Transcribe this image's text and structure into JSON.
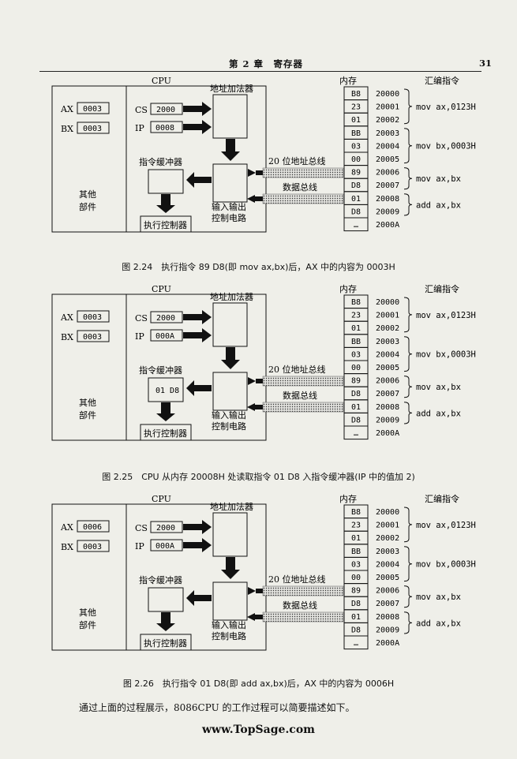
{
  "header": {
    "chapter": "第 2 章　寄存器",
    "page": "31"
  },
  "diagrams": [
    {
      "caption": "图 2.24　执行指令 89 D8(即 mov ax,bx)后，AX 中的内容为 0003H",
      "ax": "0003",
      "bx": "0003",
      "cs": "2000",
      "ip": "0008",
      "buffer": ""
    },
    {
      "caption": "图 2.25　CPU 从内存 20008H 处读取指令 01 D8 入指令缓冲器(IP 中的值加 2)",
      "ax": "0003",
      "bx": "0003",
      "cs": "2000",
      "ip": "000A",
      "buffer": "01 D8"
    },
    {
      "caption": "图 2.26　执行指令 01 D8(即 add ax,bx)后，AX 中的内容为 0006H",
      "ax": "0006",
      "bx": "0003",
      "cs": "2000",
      "ip": "000A",
      "buffer": ""
    }
  ],
  "labels": {
    "cpu": "CPU",
    "ax": "AX",
    "bx": "BX",
    "cs": "CS",
    "ip": "IP",
    "adder": "地址加法器",
    "buffer": "指令缓冲器",
    "other1": "其他",
    "other2": "部件",
    "exec": "执行控制器",
    "io1": "输入输出",
    "io2": "控制电路",
    "addrbus": "20 位地址总线",
    "databus": "数据总线",
    "memory": "内存",
    "asm": "汇编指令"
  },
  "memory": {
    "bytes": [
      "B8",
      "23",
      "01",
      "BB",
      "03",
      "00",
      "89",
      "D8",
      "01",
      "D8",
      "…"
    ],
    "addrs": [
      "20000",
      "20001",
      "20002",
      "20003",
      "20004",
      "20005",
      "20006",
      "20007",
      "20008",
      "20009",
      "2000A"
    ]
  },
  "instructions": [
    "mov ax,0123H",
    "mov bx,0003H",
    "mov ax,bx",
    "add ax,bx"
  ],
  "body": "通过上面的过程展示，8086CPU 的工作过程可以简要描述如下。",
  "footer": "www.TopSage.com"
}
